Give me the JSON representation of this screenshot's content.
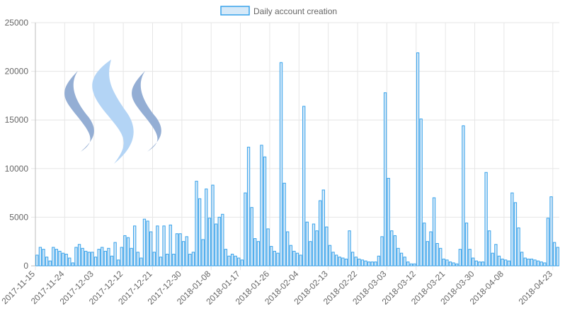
{
  "chart_data": {
    "type": "bar",
    "legend": {
      "label": "Daily account creation",
      "position": "top-center",
      "fill_color": "#d6e9f8",
      "border_color": "#36a2eb"
    },
    "bar_fill_color": "#d6e9f8",
    "bar_border_color": "#36a2eb",
    "grid": true,
    "ylim": [
      0,
      25000
    ],
    "y_ticks": [
      "0",
      "5000",
      "10000",
      "15000",
      "20000",
      "25000"
    ],
    "x_ticks": [
      "2017-11-15",
      "2017-11-24",
      "2017-12-03",
      "2017-12-12",
      "2017-12-21",
      "2017-12-30",
      "2018-01-08",
      "2018-01-17",
      "2018-01-26",
      "2018-02-04",
      "2018-02-13",
      "2018-02-22",
      "2018-03-03",
      "2018-03-12",
      "2018-03-21",
      "2018-03-30",
      "2018-04-08",
      "2018-04-23"
    ],
    "x_start": "2017-11-15",
    "x_end": "2018-04-23",
    "values": [
      1100,
      1900,
      1700,
      900,
      500,
      1900,
      1700,
      1500,
      1300,
      1200,
      800,
      300,
      1900,
      2200,
      1800,
      1500,
      1400,
      1400,
      900,
      1700,
      1900,
      1500,
      1800,
      1000,
      2400,
      600,
      1900,
      3100,
      2900,
      1800,
      4100,
      1400,
      800,
      4800,
      4600,
      3500,
      1400,
      4100,
      900,
      4100,
      1200,
      4200,
      1200,
      3300,
      3300,
      2500,
      3000,
      1200,
      1400,
      8700,
      6900,
      2700,
      7900,
      4900,
      8300,
      4300,
      5000,
      5300,
      1700,
      1000,
      1200,
      1000,
      800,
      600,
      7500,
      12200,
      6000,
      2800,
      2500,
      12400,
      11200,
      3800,
      2000,
      1500,
      1300,
      20900,
      8500,
      3500,
      2100,
      1500,
      1300,
      1100,
      16400,
      4500,
      2500,
      4300,
      3600,
      6700,
      7800,
      4000,
      2100,
      1400,
      1100,
      900,
      800,
      700,
      3600,
      1400,
      900,
      700,
      600,
      500,
      400,
      400,
      400,
      1000,
      3000,
      17800,
      9000,
      3600,
      3100,
      1800,
      1300,
      900,
      400,
      200,
      200,
      21900,
      15100,
      4400,
      2500,
      3500,
      7000,
      2300,
      1800,
      700,
      600,
      400,
      300,
      200,
      1700,
      14400,
      4400,
      1700,
      800,
      500,
      400,
      400,
      9600,
      3600,
      1300,
      2200,
      1000,
      700,
      600,
      500,
      7500,
      6500,
      3900,
      1400,
      800,
      700,
      700,
      600,
      500,
      400,
      300,
      4900,
      7100,
      2400,
      1900
    ]
  },
  "logo": {
    "icon": "steem-logo-icon",
    "colors": [
      "#94aed4",
      "#b3d4f5",
      "#94aed4"
    ]
  }
}
